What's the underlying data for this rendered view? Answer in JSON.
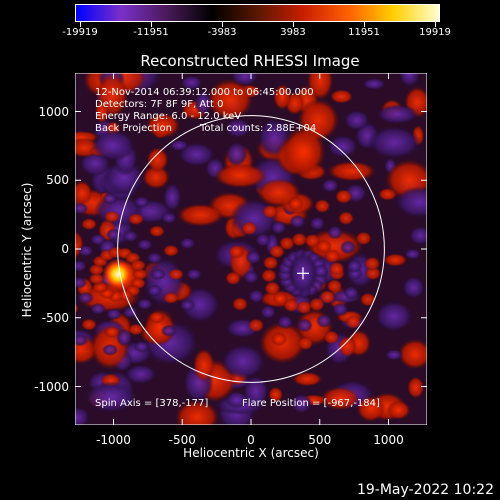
{
  "colorbar": {
    "labels": [
      "-19919",
      "-11951",
      "-3983",
      "3983",
      "11951",
      "19919"
    ],
    "stops": [
      "#0000ff",
      "#7a30c8",
      "#4a1a5a",
      "#000000",
      "#5a1800",
      "#c81e00",
      "#ff6000",
      "#ffd000",
      "#ffffd0"
    ]
  },
  "title": "Reconstructed RHESSI Image",
  "info": {
    "line1": "12-Nov-2014 06:39:12.000 to 06:45:00.000",
    "line2": "Detectors: 7F 8F 9F, Att 0",
    "line3": "Energy Range: 6.0 - 12.0 keV",
    "line4a": "Back Projection",
    "line4b": "Total counts: 2.88E+04",
    "spin_axis": "Spin Axis = [378,-177]",
    "flare_position": "Flare Position = [-967,-184]"
  },
  "axes": {
    "xlabel": "Heliocentric X (arcsec)",
    "ylabel": "Heliocentric Y (arcsec)",
    "xticks": [
      "-1000",
      "-500",
      "0",
      "500",
      "1000"
    ],
    "yticks": [
      "1000",
      "500",
      "0",
      "-500",
      "-1000"
    ],
    "xrange": [
      -1280,
      1280
    ],
    "yrange": [
      -1280,
      1280
    ]
  },
  "footer": {
    "date": "19-May-2022 10:22"
  },
  "colors": {
    "background": "#000000",
    "foreground": "#ffffff"
  }
}
